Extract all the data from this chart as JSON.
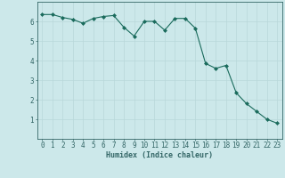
{
  "x": [
    0,
    1,
    2,
    3,
    4,
    5,
    6,
    7,
    8,
    9,
    10,
    11,
    12,
    13,
    14,
    15,
    16,
    17,
    18,
    19,
    20,
    21,
    22,
    23
  ],
  "y": [
    6.35,
    6.35,
    6.2,
    6.1,
    5.9,
    6.15,
    6.25,
    6.3,
    5.7,
    5.25,
    6.0,
    6.0,
    5.55,
    6.15,
    6.15,
    5.65,
    3.85,
    3.6,
    3.75,
    2.35,
    1.8,
    1.4,
    1.0,
    0.8
  ],
  "line_color": "#1a6b5c",
  "marker": "D",
  "marker_size": 2,
  "bg_color": "#cce8ea",
  "grid_color": "#b8d8da",
  "axis_color": "#336666",
  "tick_color": "#336666",
  "xlabel": "Humidex (Indice chaleur)",
  "xlabel_fontsize": 6.0,
  "tick_fontsize": 5.5,
  "ylim": [
    0,
    7
  ],
  "xlim": [
    -0.5,
    23.5
  ],
  "yticks": [
    1,
    2,
    3,
    4,
    5,
    6
  ],
  "xticks": [
    0,
    1,
    2,
    3,
    4,
    5,
    6,
    7,
    8,
    9,
    10,
    11,
    12,
    13,
    14,
    15,
    16,
    17,
    18,
    19,
    20,
    21,
    22,
    23
  ]
}
